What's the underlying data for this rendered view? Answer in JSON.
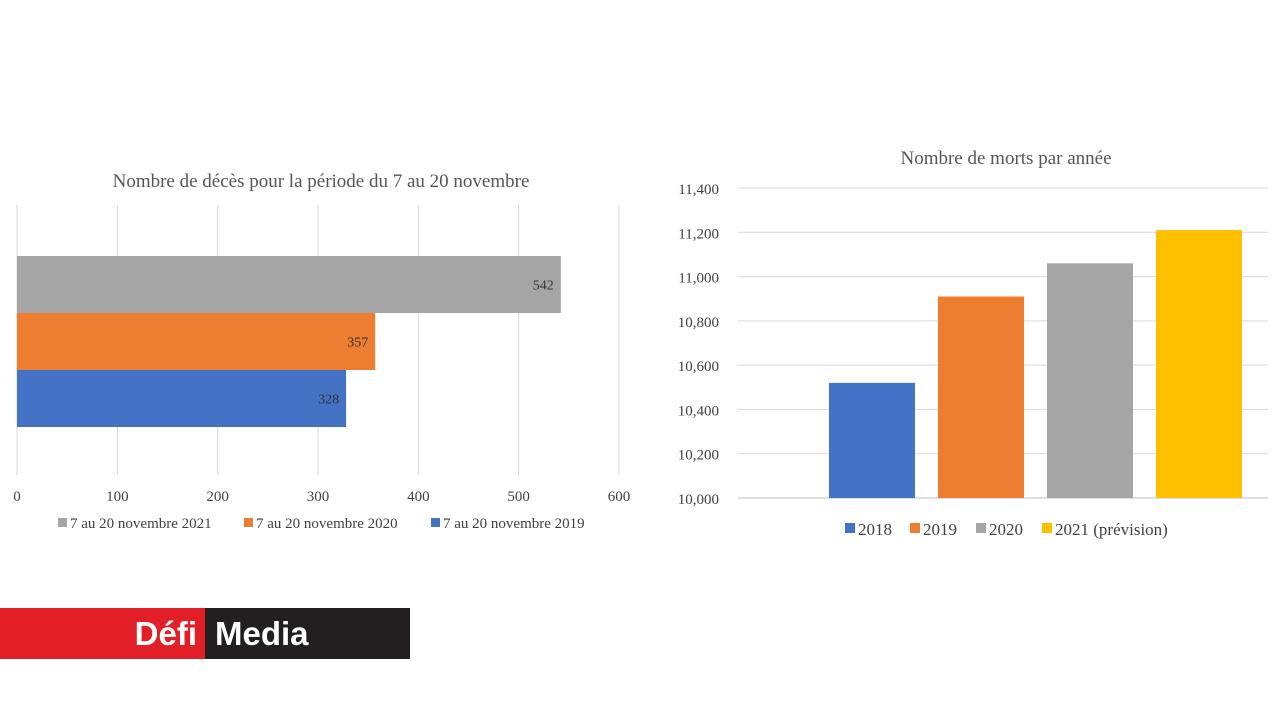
{
  "chart_data": [
    {
      "type": "bar",
      "orientation": "horizontal",
      "title": "Nombre de décès pour la période du 7 au 20 novembre",
      "categories": [
        "7 au 20 novembre 2021",
        "7 au 20 novembre 2020",
        "7 au 20 novembre 2019"
      ],
      "values": [
        542,
        357,
        328
      ],
      "value_labels": [
        "542",
        "357",
        "328"
      ],
      "colors": [
        "#a5a5a5",
        "#ed7d31",
        "#4472c4"
      ],
      "xlim": [
        0,
        600
      ],
      "ticks": [
        0,
        100,
        200,
        300,
        400,
        500,
        600
      ],
      "tick_labels": [
        "0",
        "100",
        "200",
        "300",
        "400",
        "500",
        "600"
      ],
      "legend": [
        "7 au 20 novembre 2021",
        "7 au 20 novembre 2020",
        "7 au 20 novembre 2019"
      ],
      "legend_position": "bottom",
      "grid": true
    },
    {
      "type": "bar",
      "orientation": "vertical",
      "title": "Nombre de morts par année",
      "categories": [
        "2018",
        "2019",
        "2020",
        "2021 (prévision)"
      ],
      "values": [
        10520,
        10910,
        11060,
        11210
      ],
      "colors": [
        "#4472c4",
        "#ed7d31",
        "#a5a5a5",
        "#ffc000"
      ],
      "ylim": [
        10000,
        11400
      ],
      "ticks": [
        10000,
        10200,
        10400,
        10600,
        10800,
        11000,
        11200,
        11400
      ],
      "tick_labels": [
        "10,000",
        "10,200",
        "10,400",
        "10,600",
        "10,800",
        "11,000",
        "11,200",
        "11,400"
      ],
      "legend": [
        "2018",
        "2019",
        "2020",
        "2021 (prévision)"
      ],
      "legend_position": "bottom",
      "grid": true
    }
  ],
  "logo": {
    "part1": "Défi",
    "part2": "Media"
  }
}
